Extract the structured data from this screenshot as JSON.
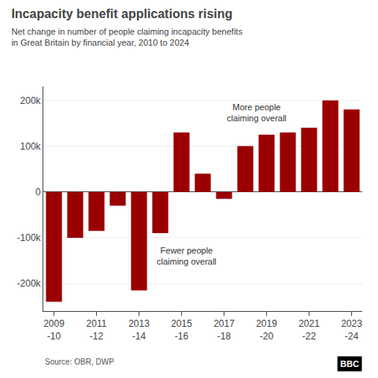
{
  "chart_data": {
    "type": "bar",
    "title": "Incapacity benefit applications rising",
    "subtitle": "Net change in number of people claiming incapacity benefits\nin Great Britain by financial year, 2010 to 2024",
    "source": "Source: OBR, DWP",
    "credit": "BBC",
    "categories": [
      "2009\n-10",
      null,
      "2011\n-12",
      null,
      "2013\n-14",
      null,
      "2015\n-16",
      null,
      "2017\n-18",
      null,
      "2019\n-20",
      null,
      "2021\n-22",
      null,
      "2023\n-24"
    ],
    "values": [
      -240000,
      -100000,
      -85000,
      -30000,
      -215000,
      -90000,
      130000,
      40000,
      -15000,
      100000,
      125000,
      130000,
      140000,
      200000,
      180000
    ],
    "color": "#9B0000",
    "ylim": [
      -260000,
      230000
    ],
    "yticks": [
      {
        "value": -200000,
        "label": "-200k"
      },
      {
        "value": -100000,
        "label": "-100k"
      },
      0,
      {
        "value": 100000,
        "label": "100k"
      },
      {
        "value": 200000,
        "label": "200k"
      }
    ],
    "annotations": [
      "More people\nclaiming overall",
      "Fewer people\nclaiming overall"
    ],
    "grid": true
  }
}
